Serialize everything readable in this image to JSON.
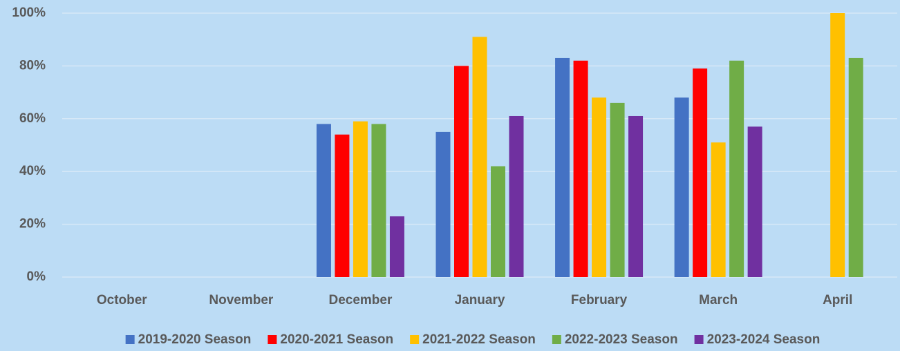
{
  "chart_data": {
    "type": "bar",
    "categories": [
      "October",
      "November",
      "December",
      "January",
      "February",
      "March",
      "April"
    ],
    "series": [
      {
        "name": "2019-2020 Season",
        "color": "#4472c4",
        "values": [
          null,
          null,
          58,
          55,
          83,
          68,
          null
        ]
      },
      {
        "name": "2020-2021 Season",
        "color": "#ff0000",
        "values": [
          null,
          null,
          54,
          80,
          82,
          79,
          null
        ]
      },
      {
        "name": "2021-2022 Season",
        "color": "#ffc000",
        "values": [
          null,
          null,
          59,
          91,
          68,
          51,
          100
        ]
      },
      {
        "name": "2022-2023 Season",
        "color": "#70ad47",
        "values": [
          null,
          null,
          58,
          42,
          66,
          82,
          83
        ]
      },
      {
        "name": "2023-2024 Season",
        "color": "#7030a0",
        "values": [
          null,
          null,
          23,
          61,
          61,
          57,
          null
        ]
      }
    ],
    "ylim": [
      0,
      100
    ],
    "yticks": [
      {
        "value": 0,
        "label": "0%"
      },
      {
        "value": 20,
        "label": "20%"
      },
      {
        "value": 40,
        "label": "40%"
      },
      {
        "value": 60,
        "label": "60%"
      },
      {
        "value": 80,
        "label": "80%"
      },
      {
        "value": 100,
        "label": "100%"
      }
    ],
    "grid": true,
    "legend": "bottom"
  }
}
